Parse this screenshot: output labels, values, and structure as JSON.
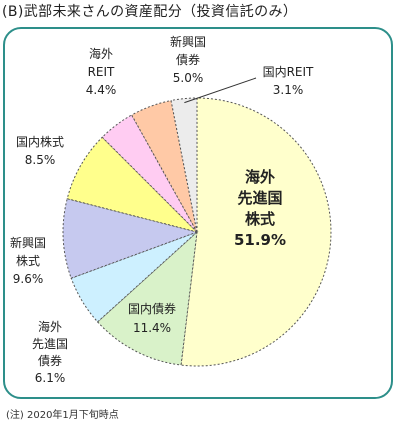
{
  "title": "(B)武部未来さんの資産配分（投資信託のみ）",
  "footnote": "(注) 2020年1月下旬時点",
  "chart_data": {
    "type": "pie",
    "title": "(B)武部未来さんの資産配分（投資信託のみ）",
    "slices": [
      {
        "label_lines": [
          "海外",
          "先進国",
          "株式"
        ],
        "value": 51.9,
        "value_text": "51.9%",
        "color": "#ffffcc"
      },
      {
        "label_lines": [
          "国内債券"
        ],
        "value": 11.4,
        "value_text": "11.4%",
        "color": "#d9f2c9"
      },
      {
        "label_lines": [
          "海外",
          "先進国",
          "債券"
        ],
        "value": 6.1,
        "value_text": "6.1%",
        "color": "#cdf0ff"
      },
      {
        "label_lines": [
          "新興国",
          "株式"
        ],
        "value": 9.6,
        "value_text": "9.6%",
        "color": "#c6c9ef"
      },
      {
        "label_lines": [
          "国内株式"
        ],
        "value": 8.5,
        "value_text": "8.5%",
        "color": "#ffff8c"
      },
      {
        "label_lines": [
          "海外",
          "REIT"
        ],
        "value": 4.4,
        "value_text": "4.4%",
        "color": "#ffccf2"
      },
      {
        "label_lines": [
          "新興国",
          "債券"
        ],
        "value": 5.0,
        "value_text": "5.0%",
        "color": "#ffc9a6"
      },
      {
        "label_lines": [
          "国内REIT"
        ],
        "value": 3.1,
        "value_text": "3.1%",
        "color": "#ececec"
      }
    ]
  }
}
